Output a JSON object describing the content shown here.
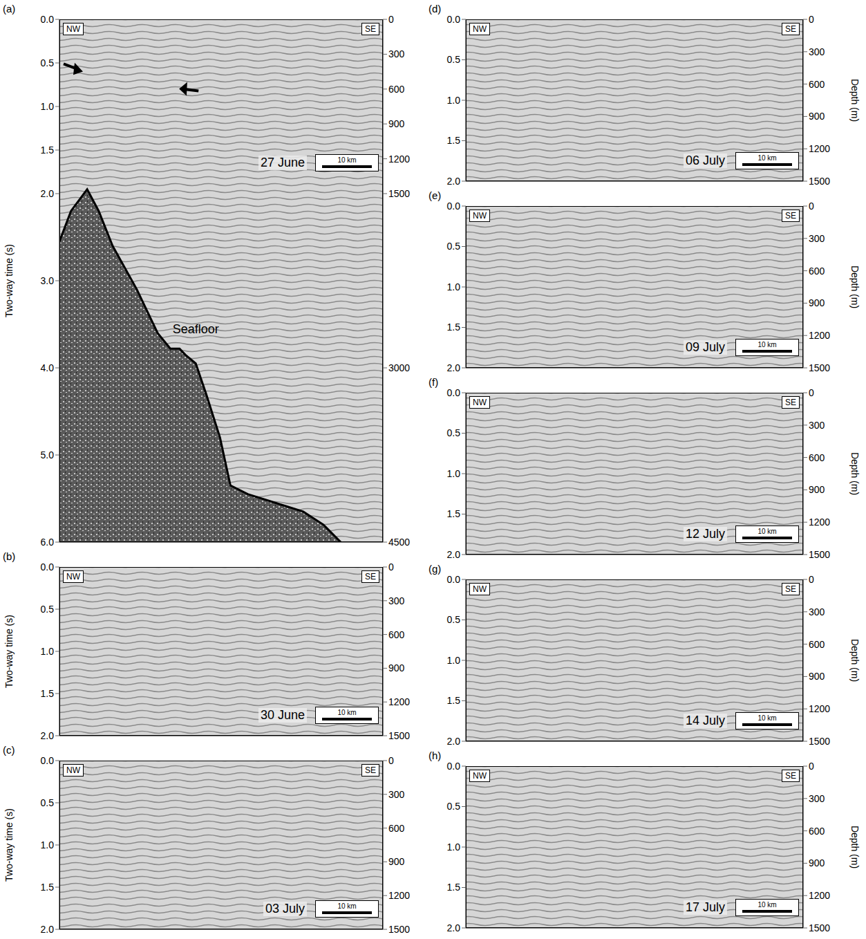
{
  "chart_data": [
    {
      "type": "seismic",
      "panel": "(a)",
      "date": "27 June",
      "corner_labels": [
        "NW",
        "SE"
      ],
      "scale_bar": "10 km",
      "ylabel": "Two-way time (s)",
      "ylim": [
        0,
        6
      ],
      "yticks": [
        {
          "value": 0,
          "label": "0.0"
        },
        {
          "value": 0.5,
          "label": "0.5"
        },
        {
          "value": 1,
          "label": "1.0"
        },
        {
          "value": 1.5,
          "label": "1.5"
        },
        {
          "value": 2,
          "label": "2.0"
        },
        {
          "value": 3,
          "label": "3.0"
        },
        {
          "value": 4,
          "label": "4.0"
        },
        {
          "value": 5,
          "label": "5.0"
        },
        {
          "value": 6,
          "label": "6.0"
        }
      ],
      "y2lim": [
        0,
        4500
      ],
      "y2ticks": [
        0,
        300,
        600,
        900,
        1200,
        1500,
        3000,
        4500
      ],
      "tick_labels": "y",
      "annotations": [
        "Seafloor"
      ],
      "xlim": [
        0,
        56
      ],
      "seafloor": {
        "x": [
          0,
          2,
          4.8,
          6.8,
          9.2,
          13.4,
          17,
          19.2,
          20.8,
          21.8,
          23.6,
          25.4,
          27.8,
          29.6,
          32.6,
          37.4,
          42.2,
          45.7,
          48.7
        ],
        "values": [
          2.55,
          2.2,
          1.95,
          2.2,
          2.6,
          3.1,
          3.6,
          3.78,
          3.78,
          3.85,
          3.95,
          4.3,
          4.8,
          5.35,
          5.45,
          5.55,
          5.65,
          5.8,
          6.0
        ]
      }
    },
    {
      "type": "seismic",
      "panel": "(b)",
      "date": "30 June",
      "corner_labels": [
        "NW",
        "SE"
      ],
      "scale_bar": "10 km",
      "ylabel": "Two-way time (s)",
      "ylim": [
        0,
        2
      ],
      "yticks": [
        {
          "value": 0,
          "label": "0.0"
        },
        {
          "value": 0.5,
          "label": "0.5"
        },
        {
          "value": 1,
          "label": "1.0"
        },
        {
          "value": 1.5,
          "label": "1.5"
        },
        {
          "value": 2,
          "label": "2.0"
        }
      ],
      "y2lim": [
        0,
        1500
      ],
      "y2ticks": [
        0,
        300,
        600,
        900,
        1200,
        1500
      ],
      "tick_labels": "y"
    },
    {
      "type": "seismic",
      "panel": "(c)",
      "date": "03 July",
      "corner_labels": [
        "NW",
        "SE"
      ],
      "scale_bar": "10 km",
      "ylabel": "Two-way time (s)",
      "ylim": [
        0,
        2
      ],
      "yticks": [
        {
          "value": 0,
          "label": "0.0"
        },
        {
          "value": 0.5,
          "label": "0.5"
        },
        {
          "value": 1,
          "label": "1.0"
        },
        {
          "value": 1.5,
          "label": "1.5"
        },
        {
          "value": 2,
          "label": "2.0"
        }
      ],
      "y2lim": [
        0,
        1500
      ],
      "y2ticks": [
        0,
        300,
        600,
        900,
        1200,
        1500
      ],
      "tick_labels": "y"
    },
    {
      "type": "seismic",
      "panel": "(d)",
      "date": "06 July",
      "corner_labels": [
        "NW",
        "SE"
      ],
      "scale_bar": "10 km",
      "y2label": "Depth (m)",
      "ylim": [
        0,
        2
      ],
      "yticks": [
        {
          "value": 0,
          "label": "0.0"
        },
        {
          "value": 0.5,
          "label": "0.5"
        },
        {
          "value": 1,
          "label": "1.0"
        },
        {
          "value": 1.5,
          "label": "1.5"
        },
        {
          "value": 2,
          "label": "2.0"
        }
      ],
      "y2lim": [
        0,
        1500
      ],
      "y2ticks": [
        0,
        300,
        600,
        900,
        1200,
        1500
      ],
      "tick_labels": "y"
    },
    {
      "type": "seismic",
      "panel": "(e)",
      "date": "09 July",
      "corner_labels": [
        "NW",
        "SE"
      ],
      "scale_bar": "10 km",
      "y2label": "Depth (m)",
      "ylim": [
        0,
        2
      ],
      "yticks": [
        {
          "value": 0,
          "label": "0.0"
        },
        {
          "value": 0.5,
          "label": "0.5"
        },
        {
          "value": 1,
          "label": "1.0"
        },
        {
          "value": 1.5,
          "label": "1.5"
        },
        {
          "value": 2,
          "label": "2.0"
        }
      ],
      "y2lim": [
        0,
        1500
      ],
      "y2ticks": [
        0,
        300,
        600,
        900,
        1200,
        1500
      ],
      "tick_labels": "y"
    },
    {
      "type": "seismic",
      "panel": "(f)",
      "date": "12 July",
      "corner_labels": [
        "NW",
        "SE"
      ],
      "scale_bar": "10 km",
      "y2label": "Depth (m)",
      "ylim": [
        0,
        2
      ],
      "yticks": [
        {
          "value": 0,
          "label": "0.0"
        },
        {
          "value": 0.5,
          "label": "0.5"
        },
        {
          "value": 1,
          "label": "1.0"
        },
        {
          "value": 1.5,
          "label": "1.5"
        },
        {
          "value": 2,
          "label": "2.0"
        }
      ],
      "y2lim": [
        0,
        1500
      ],
      "y2ticks": [
        0,
        300,
        600,
        900,
        1200,
        1500
      ],
      "tick_labels": "y"
    },
    {
      "type": "seismic",
      "panel": "(g)",
      "date": "14 July",
      "corner_labels": [
        "NW",
        "SE"
      ],
      "scale_bar": "10 km",
      "y2label": "Depth (m)",
      "ylim": [
        0,
        2
      ],
      "yticks": [
        {
          "value": 0,
          "label": "0.0"
        },
        {
          "value": 0.5,
          "label": "0.5"
        },
        {
          "value": 1,
          "label": "1.0"
        },
        {
          "value": 1.5,
          "label": "1.5"
        },
        {
          "value": 2,
          "label": "2.0"
        }
      ],
      "y2lim": [
        0,
        1500
      ],
      "y2ticks": [
        0,
        300,
        600,
        900,
        1200,
        1500
      ],
      "tick_labels": "y"
    },
    {
      "type": "seismic",
      "panel": "(h)",
      "date": "17 July",
      "corner_labels": [
        "NW",
        "SE"
      ],
      "scale_bar": "10 km",
      "y2label": "Depth (m)",
      "ylim": [
        0,
        2
      ],
      "yticks": [
        {
          "value": 0,
          "label": "0.0"
        },
        {
          "value": 0.5,
          "label": "0.5"
        },
        {
          "value": 1,
          "label": "1.0"
        },
        {
          "value": 1.5,
          "label": "1.5"
        },
        {
          "value": 2,
          "label": "2.0"
        }
      ],
      "y2lim": [
        0,
        1500
      ],
      "y2ticks": [
        0,
        300,
        600,
        900,
        1200,
        1500
      ],
      "tick_labels": "y"
    }
  ]
}
